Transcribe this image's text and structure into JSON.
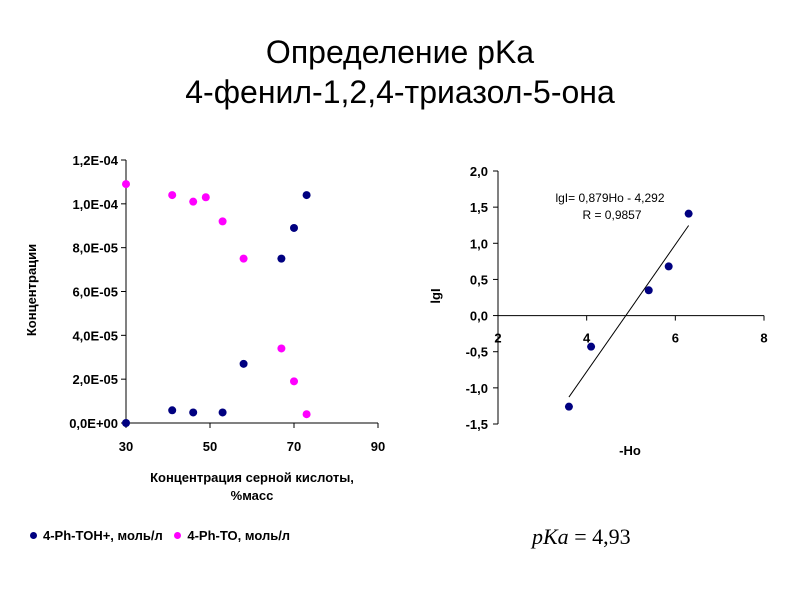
{
  "slide": {
    "title_line1": "Определение pKa",
    "title_line2": "4-фенил-1,2,4-триазол-5-она",
    "pka_symbol": "pKa",
    "pka_equals": " = 4,93"
  },
  "colors": {
    "series1": "#000080",
    "series2": "#ff00ff",
    "axis": "#000000"
  },
  "chart_data": [
    {
      "type": "scatter",
      "title": "",
      "xlabel_line1": "Концентрация серной кислоты,",
      "xlabel_line2": "%масс",
      "ylabel": "Концентрации",
      "xlim": [
        30,
        90
      ],
      "ylim": [
        0,
        0.00012
      ],
      "x_ticks": [
        30,
        50,
        70,
        90
      ],
      "x_tick_labels": [
        "30",
        "50",
        "70",
        "90"
      ],
      "y_ticks": [
        0,
        2e-05,
        4e-05,
        6e-05,
        8e-05,
        0.0001,
        0.00012
      ],
      "y_tick_labels": [
        "0,0E+00",
        "2,0E-05",
        "4,0E-05",
        "6,0E-05",
        "8,0E-05",
        "1,0E-04",
        "1,2E-04"
      ],
      "legend_position": "bottom",
      "series": [
        {
          "name": "4-Ph-TOH+, моль/л",
          "color": "#000080",
          "points": [
            [
              30,
              0.0
            ],
            [
              41,
              5.8e-06
            ],
            [
              46,
              4.8e-06
            ],
            [
              53,
              4.8e-06
            ],
            [
              58,
              2.7e-05
            ],
            [
              67,
              7.5e-05
            ],
            [
              70,
              8.9e-05
            ],
            [
              73,
              0.000104
            ]
          ]
        },
        {
          "name": "4-Ph-TO, моль/л",
          "color": "#ff00ff",
          "points": [
            [
              30,
              0.000109
            ],
            [
              41,
              0.000104
            ],
            [
              46,
              0.000101
            ],
            [
              49,
              0.000103
            ],
            [
              53,
              9.2e-05
            ],
            [
              58,
              7.5e-05
            ],
            [
              67,
              3.4e-05
            ],
            [
              70,
              1.9e-05
            ],
            [
              73,
              4e-06
            ]
          ]
        }
      ]
    },
    {
      "type": "scatter",
      "title": "",
      "xlabel": "-Ho",
      "ylabel": "lgI",
      "xlim": [
        2,
        8
      ],
      "ylim": [
        -1.5,
        2.0
      ],
      "x_ticks": [
        2,
        4,
        6,
        8
      ],
      "x_tick_labels": [
        "2",
        "4",
        "6",
        "8"
      ],
      "y_ticks": [
        -1.5,
        -1.0,
        -0.5,
        0.0,
        0.5,
        1.0,
        1.5,
        2.0
      ],
      "y_tick_labels": [
        "-1,5",
        "-1,0",
        "-0,5",
        "0,0",
        "0,5",
        "1,0",
        "1,5",
        "2,0"
      ],
      "equation_line1": "lgI= 0,879Ho - 4,292",
      "equation_line2": "R = 0,9857",
      "trendline": {
        "slope": 0.879,
        "intercept": -4.292,
        "x_range": [
          3.6,
          6.3
        ]
      },
      "series": [
        {
          "name": "",
          "color": "#000080",
          "points": [
            [
              3.6,
              -1.26
            ],
            [
              4.1,
              -0.43
            ],
            [
              5.4,
              0.35
            ],
            [
              5.85,
              0.68
            ],
            [
              6.3,
              1.41
            ]
          ]
        }
      ]
    }
  ]
}
